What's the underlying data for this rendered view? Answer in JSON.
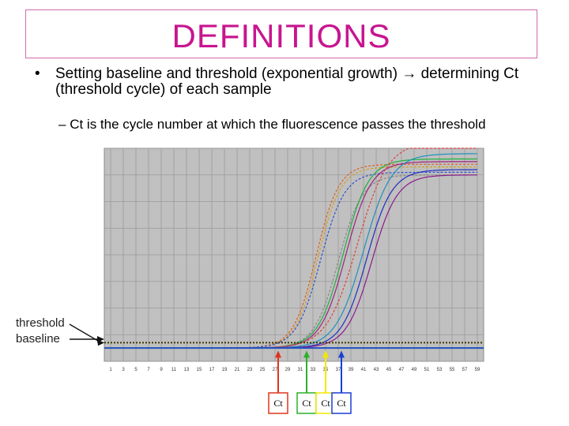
{
  "slide": {
    "title": "DEFINITIONS",
    "bullet_marker": "•",
    "bullet_text": "Setting baseline and threshold (exponential growth) → determining Ct (threshold cycle) of each sample",
    "sub_marker": "–",
    "sub_text": "Ct is the cycle number at which the fluorescence passes the threshold"
  },
  "annotations": {
    "threshold": "threshold",
    "baseline": "baseline",
    "ct_labels": [
      "Ct",
      "Ct",
      "Ct",
      "Ct"
    ],
    "ct_colors": [
      "#e0341e",
      "#2bb02b",
      "#f2e800",
      "#1a3fd6"
    ],
    "ct_cycles": [
      27.5,
      32,
      35,
      37.5
    ]
  },
  "colors": {
    "title": "#c8158f",
    "title_border": "#d36ab0",
    "plot_background": "#c0c0c0",
    "threshold_line": "#3a3a00"
  },
  "chart_data": {
    "type": "line",
    "title": "",
    "xlabel": "",
    "ylabel": "",
    "x_ticks": [
      1,
      3,
      5,
      7,
      9,
      11,
      13,
      15,
      17,
      19,
      21,
      23,
      25,
      27,
      29,
      31,
      33,
      35,
      37,
      39,
      41,
      43,
      45,
      47,
      49,
      51,
      53,
      55,
      57,
      59
    ],
    "xlim": [
      0,
      60
    ],
    "ylim": [
      -0.1,
      1.5
    ],
    "threshold": 0.04,
    "baseline": 0.0,
    "grid": true,
    "series": [
      {
        "color": "#e06020",
        "dashed": true,
        "plateau": 1.38,
        "midpoint": 33.5,
        "slope": 1.8
      },
      {
        "color": "#d4a020",
        "dashed": true,
        "plateau": 1.36,
        "midpoint": 33.8,
        "slope": 1.8
      },
      {
        "color": "#3050d0",
        "dashed": true,
        "plateau": 1.32,
        "midpoint": 34.2,
        "slope": 1.9
      },
      {
        "color": "#888888",
        "dashed": true,
        "plateau": 1.3,
        "midpoint": 37.0,
        "slope": 1.9
      },
      {
        "color": "#20b040",
        "dashed": false,
        "plateau": 1.42,
        "midpoint": 37.8,
        "slope": 2.0
      },
      {
        "color": "#a02080",
        "dashed": false,
        "plateau": 1.4,
        "midpoint": 38.2,
        "slope": 2.0
      },
      {
        "color": "#e04040",
        "dashed": true,
        "plateau": 1.55,
        "midpoint": 40.0,
        "slope": 2.4
      },
      {
        "color": "#2090c0",
        "dashed": false,
        "plateau": 1.46,
        "midpoint": 41.0,
        "slope": 2.2
      },
      {
        "color": "#2030c0",
        "dashed": false,
        "plateau": 1.34,
        "midpoint": 41.5,
        "slope": 2.0
      },
      {
        "color": "#8a1a8a",
        "dashed": false,
        "plateau": 1.3,
        "midpoint": 42.3,
        "slope": 2.0
      }
    ]
  }
}
